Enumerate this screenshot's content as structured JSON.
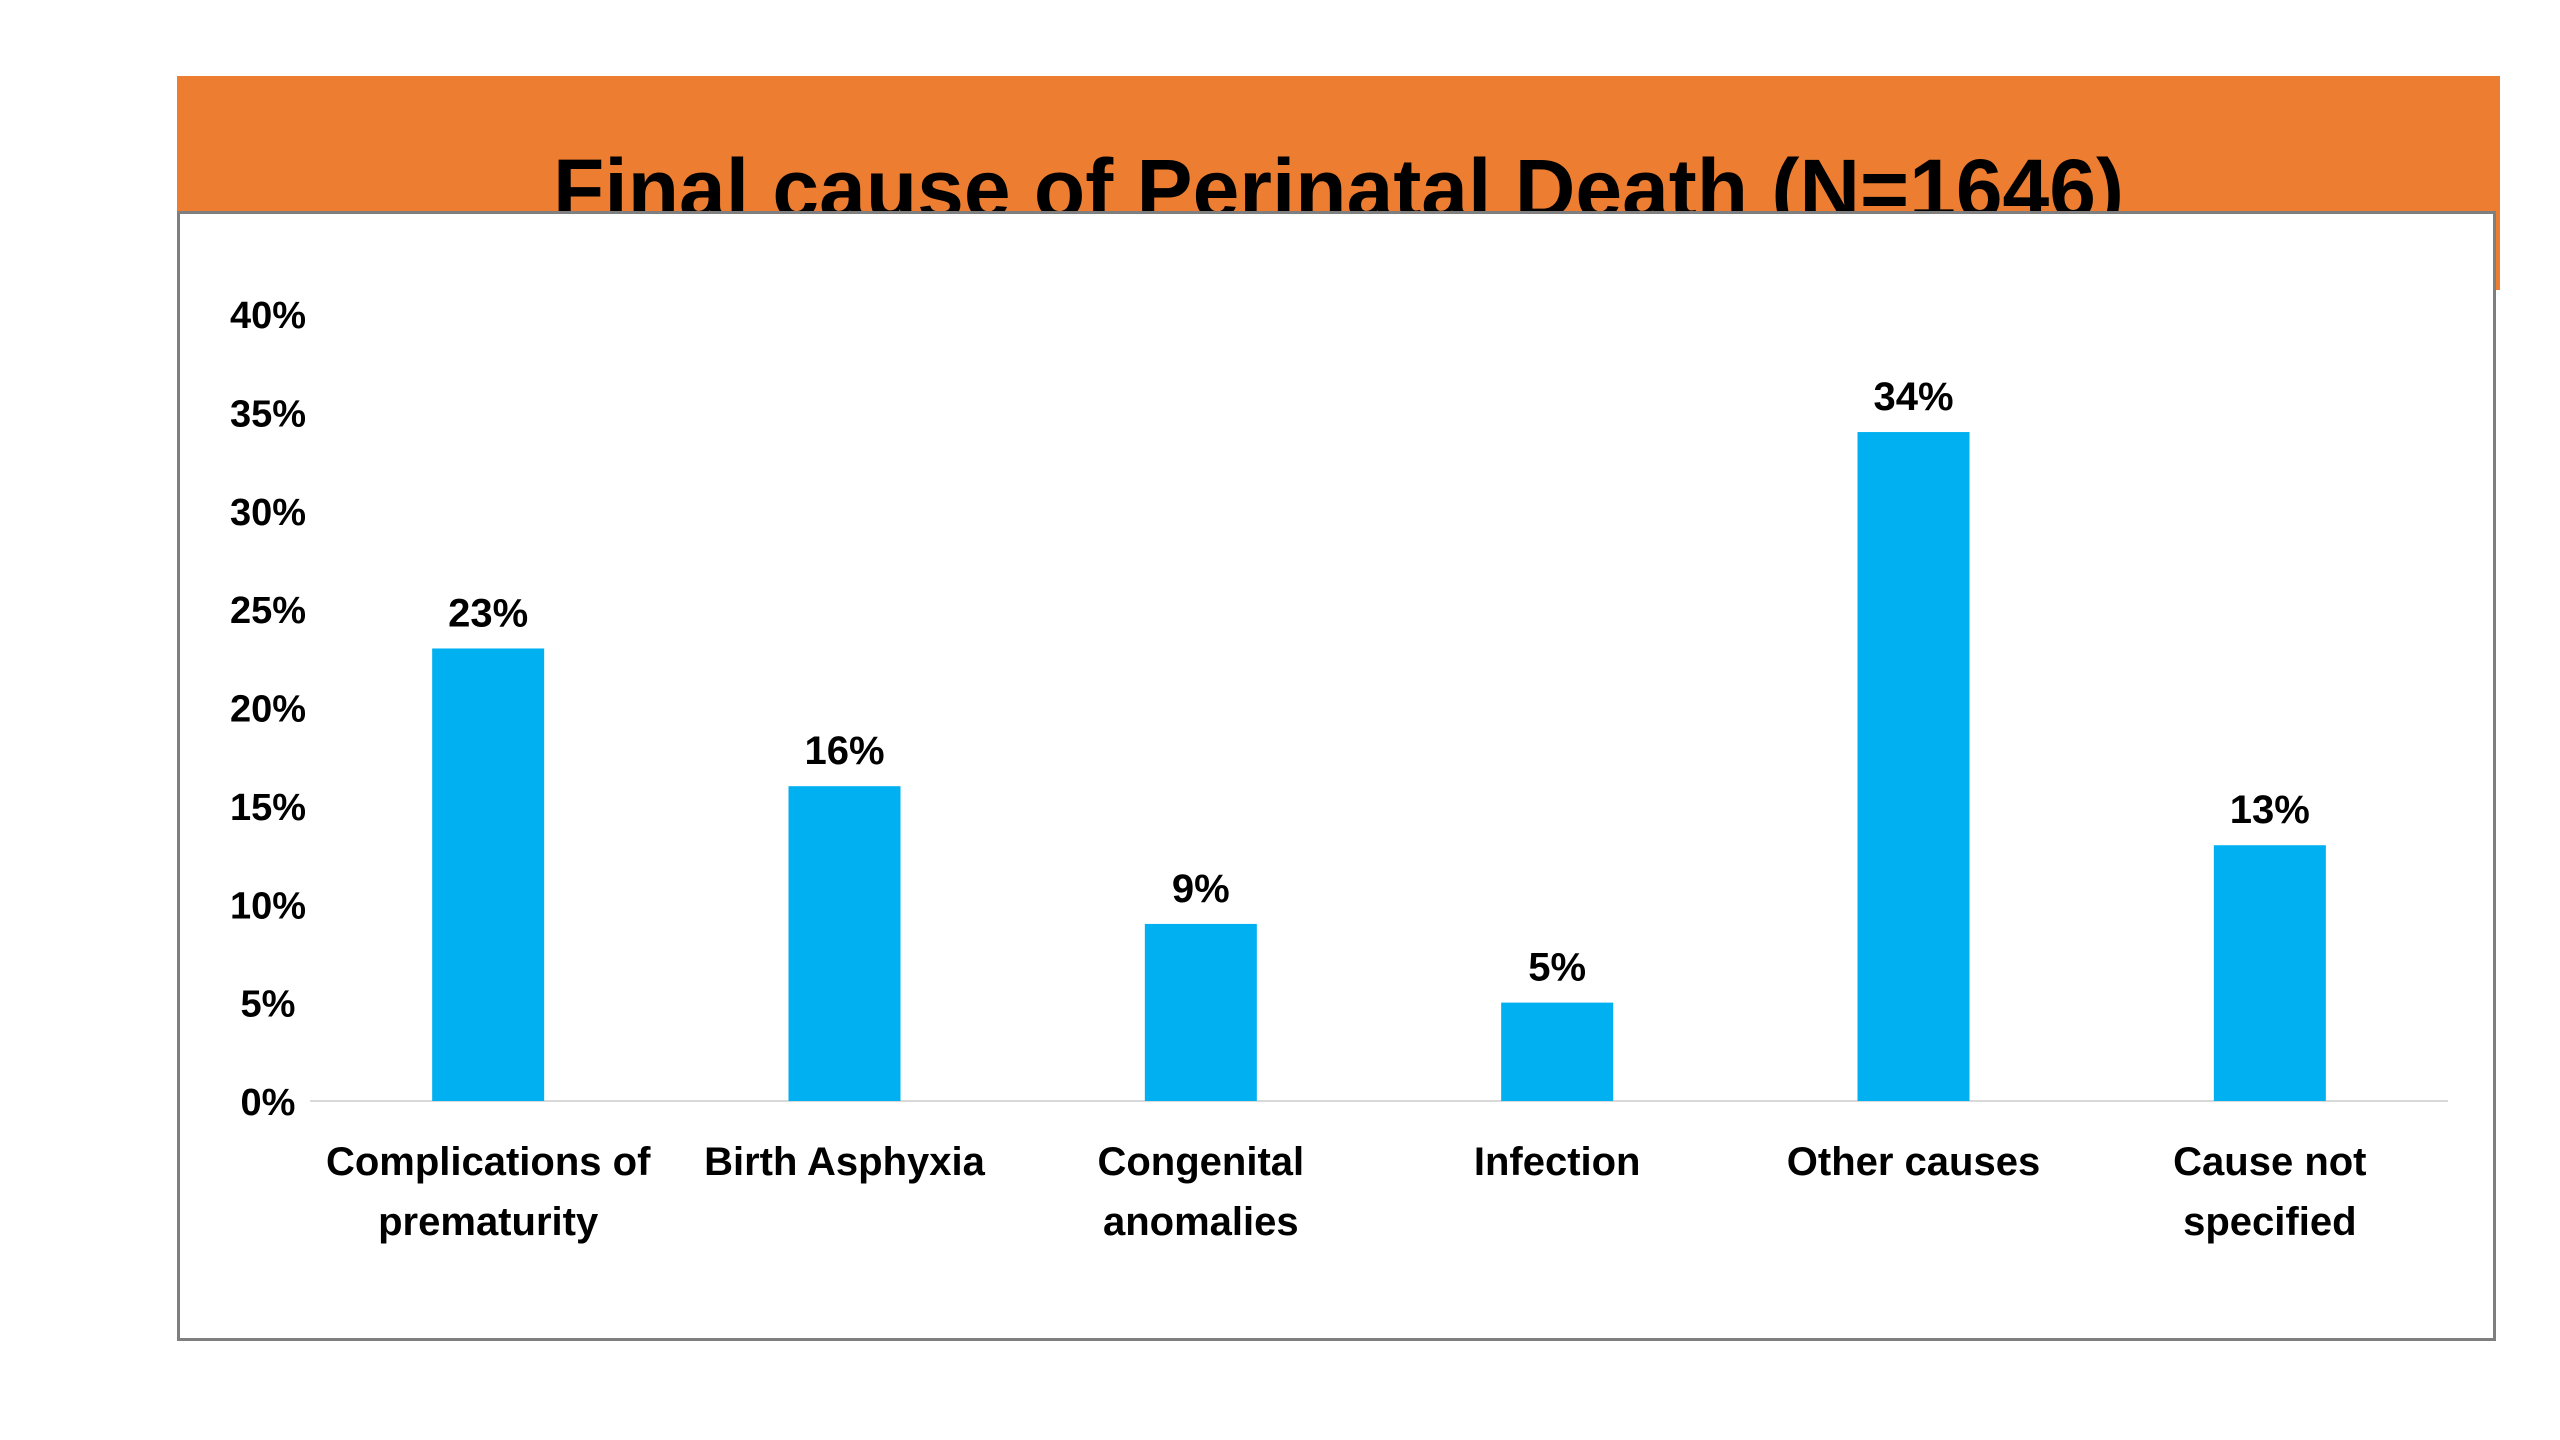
{
  "chart_data": {
    "type": "bar",
    "title": "Final cause of Perinatal Death (N=1646)",
    "categories": [
      [
        "Complications of",
        "prematurity"
      ],
      [
        "Birth Asphyxia"
      ],
      [
        "Congenital",
        "anomalies"
      ],
      [
        "Infection"
      ],
      [
        "Other causes"
      ],
      [
        "Cause not",
        "specified"
      ]
    ],
    "values": [
      23,
      16,
      9,
      5,
      34,
      13
    ],
    "data_labels": [
      "23%",
      "16%",
      "9%",
      "5%",
      "34%",
      "13%"
    ],
    "y_ticks": [
      "0%",
      "5%",
      "10%",
      "15%",
      "20%",
      "25%",
      "30%",
      "35%",
      "40%"
    ],
    "ylim": [
      0,
      40
    ],
    "xlabel": "",
    "ylabel": "",
    "grid": false,
    "legend": "none",
    "bar_color": "#00B0F0",
    "title_band_color": "#ED7D31"
  }
}
